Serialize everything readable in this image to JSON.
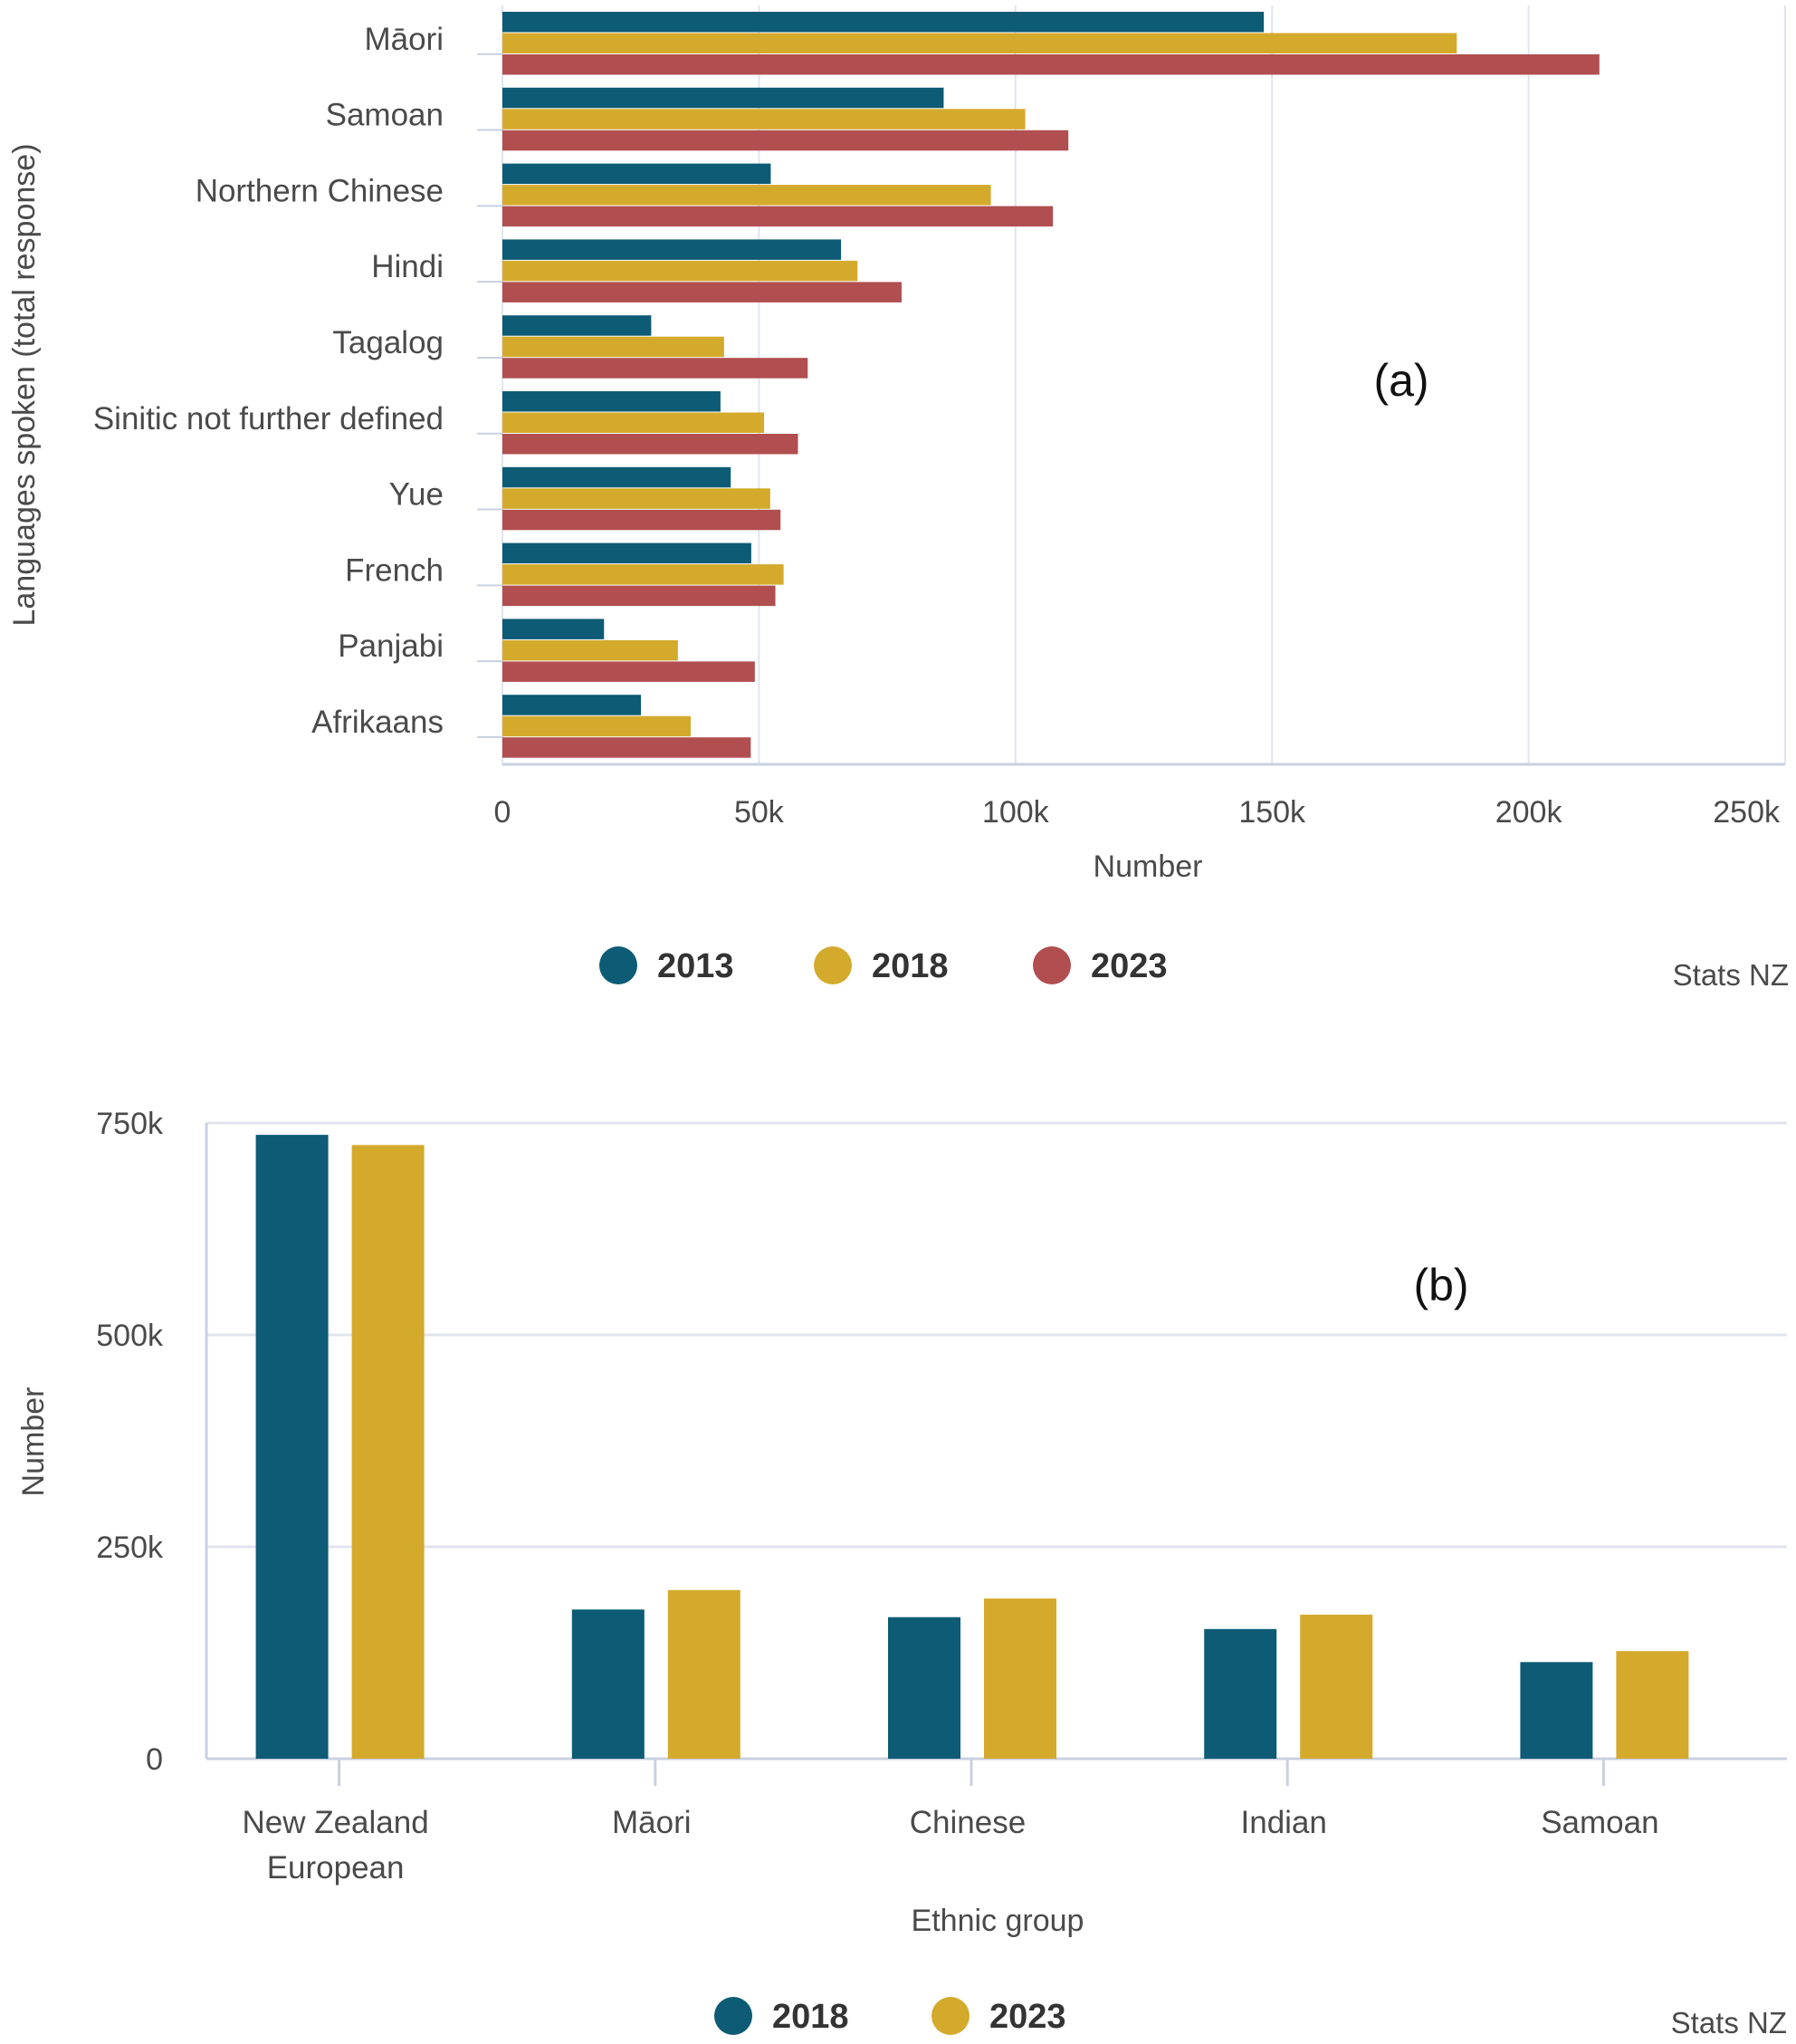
{
  "colors": {
    "y2013": "#0d5b74",
    "y2018": "#d4aa2d",
    "y2023": "#b04e50",
    "axis_text": "#4a4a4a",
    "grid": "#e1e4ec",
    "axis_line": "#c9d0e0"
  },
  "chart_data": [
    {
      "type": "bar",
      "orientation": "horizontal",
      "panel_label": "(a)",
      "ylabel": "Languages spoken (total response)",
      "xlabel": "Number",
      "categories": [
        "Māori",
        "Samoan",
        "Northern Chinese",
        "Hindi",
        "Tagalog",
        "Sinitic not further defined",
        "Yue",
        "French",
        "Panjabi",
        "Afrikaans"
      ],
      "series": [
        {
          "name": "2013",
          "color": "#0d5b74",
          "values": [
            148400,
            86000,
            52300,
            66000,
            29000,
            42500,
            44500,
            48500,
            19800,
            27000
          ]
        },
        {
          "name": "2018",
          "color": "#d4aa2d",
          "values": [
            186000,
            101900,
            95200,
            69200,
            43200,
            51000,
            52200,
            54800,
            34200,
            36700
          ]
        },
        {
          "name": "2023",
          "color": "#b04e50",
          "values": [
            213800,
            110300,
            107300,
            77800,
            59500,
            57600,
            54200,
            53200,
            49200,
            48400
          ]
        }
      ],
      "xlim": [
        0,
        250000
      ],
      "ticks": [
        "0",
        "50k",
        "100k",
        "150k",
        "200k",
        "250k"
      ],
      "grid": true,
      "legend": "bottom-center",
      "source": "Stats NZ"
    },
    {
      "type": "bar",
      "orientation": "vertical",
      "panel_label": "(b)",
      "ylabel": "Number",
      "xlabel": "Ethnic group",
      "categories": [
        "New Zealand European",
        "Māori",
        "Chinese",
        "Indian",
        "Samoan"
      ],
      "category_lines": [
        [
          "New Zealand",
          "European"
        ],
        [
          "Māori"
        ],
        [
          "Chinese"
        ],
        [
          "Indian"
        ],
        [
          "Samoan"
        ]
      ],
      "series": [
        {
          "name": "2018",
          "color": "#0d5b74",
          "values": [
            736000,
            176000,
            167000,
            153000,
            114000
          ]
        },
        {
          "name": "2023",
          "color": "#d4aa2d",
          "values": [
            724000,
            199000,
            189000,
            170000,
            127000
          ]
        }
      ],
      "ylim": [
        0,
        750000
      ],
      "ticks": [
        "0",
        "250k",
        "500k",
        "750k"
      ],
      "grid": true,
      "legend": "bottom-center",
      "source": "Stats NZ"
    }
  ]
}
